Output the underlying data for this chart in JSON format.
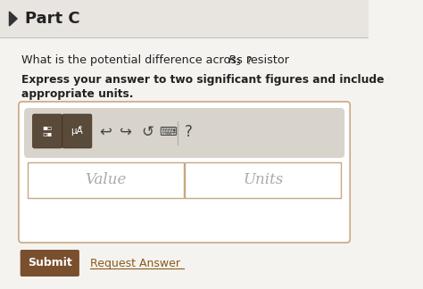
{
  "bg_color": "#f0eeeb",
  "header_bg": "#e8e5e0",
  "title": "Part C",
  "title_fontsize": 13,
  "question_line1": "What is the potential difference across resistor ",
  "question_r3": "$R_3$",
  "question_end": "?",
  "bold_line1": "Express your answer to two significant figures and include",
  "bold_line2": "appropriate units.",
  "value_label": "Value",
  "units_label": "Units",
  "submit_label": "Submit",
  "request_label": "Request Answer",
  "submit_bg": "#7a4f2e",
  "submit_fg": "#ffffff",
  "request_fg": "#8b5a1a",
  "box_border": "#c8a882",
  "toolbar_bg": "#d8d4cc",
  "input_bg": "#ffffff",
  "header_separator": "#c8c4bc",
  "triangle_color": "#333333",
  "text_color": "#222222",
  "italic_color": "#aaaaaa",
  "body_bg": "#f5f3f0",
  "btn_color": "#5a4a3a",
  "btn_edge": "#3a2a1a"
}
